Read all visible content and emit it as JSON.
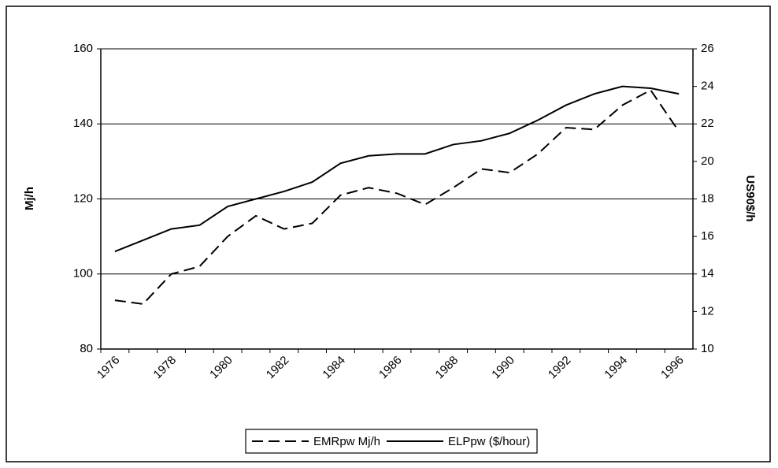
{
  "chart_data": {
    "type": "line",
    "categories": [
      "1976",
      null,
      "1978",
      null,
      "1980",
      null,
      "1982",
      null,
      "1984",
      null,
      "1986",
      null,
      "1988",
      null,
      "1990",
      null,
      "1992",
      null,
      "1994",
      null,
      "1996"
    ],
    "y_label": "Mj/h",
    "y2_label": "US90$/h",
    "ylim": [
      80,
      160
    ],
    "yticks": [
      80,
      100,
      120,
      140,
      160
    ],
    "y2lim": [
      10,
      26
    ],
    "y2ticks": [
      10,
      12,
      14,
      16,
      18,
      20,
      22,
      24,
      26
    ],
    "grid": true,
    "legend": "bottom",
    "series": [
      {
        "name": "EMRpw Mj/h",
        "color": "#000000",
        "dash": "dashed",
        "values": [
          93,
          92,
          100,
          102,
          110,
          115.5,
          112,
          113.5,
          121,
          123,
          121.5,
          118.5,
          123,
          128,
          127,
          132,
          139,
          138.5,
          145,
          149,
          138
        ]
      },
      {
        "name": "ELPpw ($/hour)",
        "color": "#000000",
        "dash": "solid",
        "axis": "y2",
        "values": [
          15.2,
          15.8,
          16.4,
          16.6,
          17.6,
          18.0,
          18.4,
          18.9,
          19.9,
          20.3,
          20.4,
          20.4,
          20.9,
          21.1,
          21.5,
          22.2,
          23.0,
          23.6,
          24.0,
          23.9,
          23.6
        ]
      }
    ]
  }
}
